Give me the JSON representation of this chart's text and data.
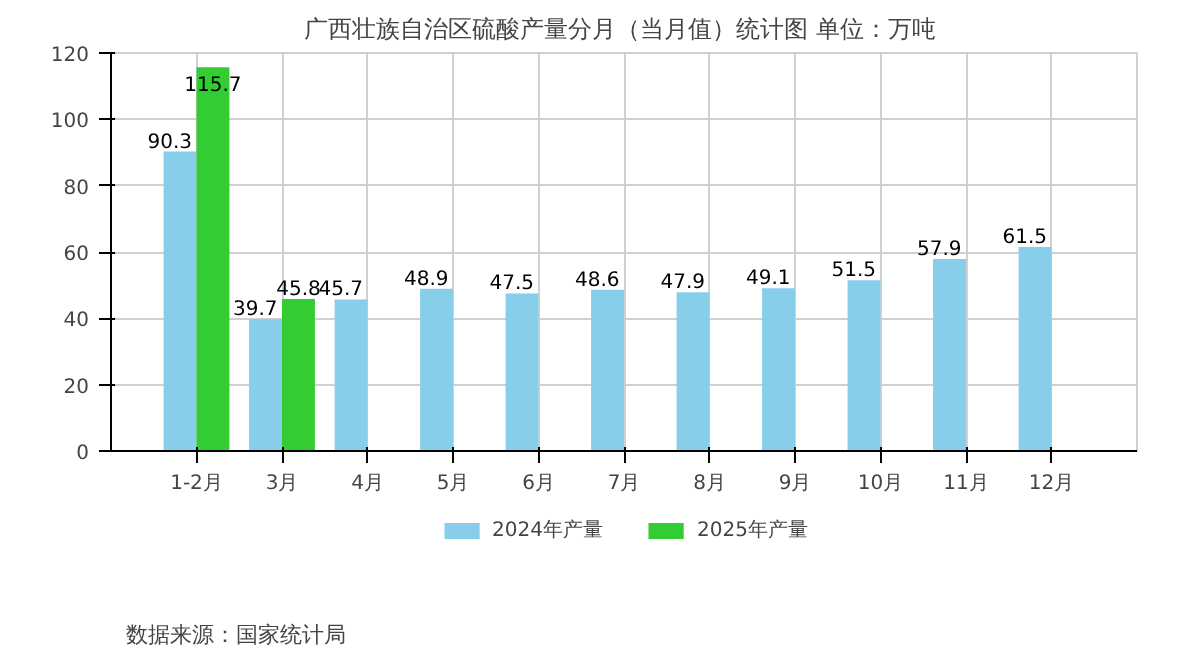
{
  "chart_data": {
    "type": "bar",
    "title": "广西壮族自治区硫酸产量分月（当月值）统计图  单位：万吨",
    "categories": [
      "1-2月",
      "3月",
      "4月",
      "5月",
      "6月",
      "7月",
      "8月",
      "9月",
      "10月",
      "11月",
      "12月"
    ],
    "series": [
      {
        "name": "2024年产量",
        "color": "#87ceeb",
        "values": [
          90.3,
          39.7,
          45.7,
          48.9,
          47.5,
          48.6,
          47.9,
          49.1,
          51.5,
          57.9,
          61.5
        ]
      },
      {
        "name": "2025年产量",
        "color": "#33cc33",
        "values": [
          115.7,
          45.8,
          null,
          null,
          null,
          null,
          null,
          null,
          null,
          null,
          null
        ]
      }
    ],
    "ylim": [
      0,
      120
    ],
    "yticks": [
      0,
      20,
      40,
      60,
      80,
      100,
      120
    ],
    "grid": true,
    "legend": "bottom",
    "data_labels": true,
    "annotations": [
      "数据来源：国家统计局"
    ]
  }
}
